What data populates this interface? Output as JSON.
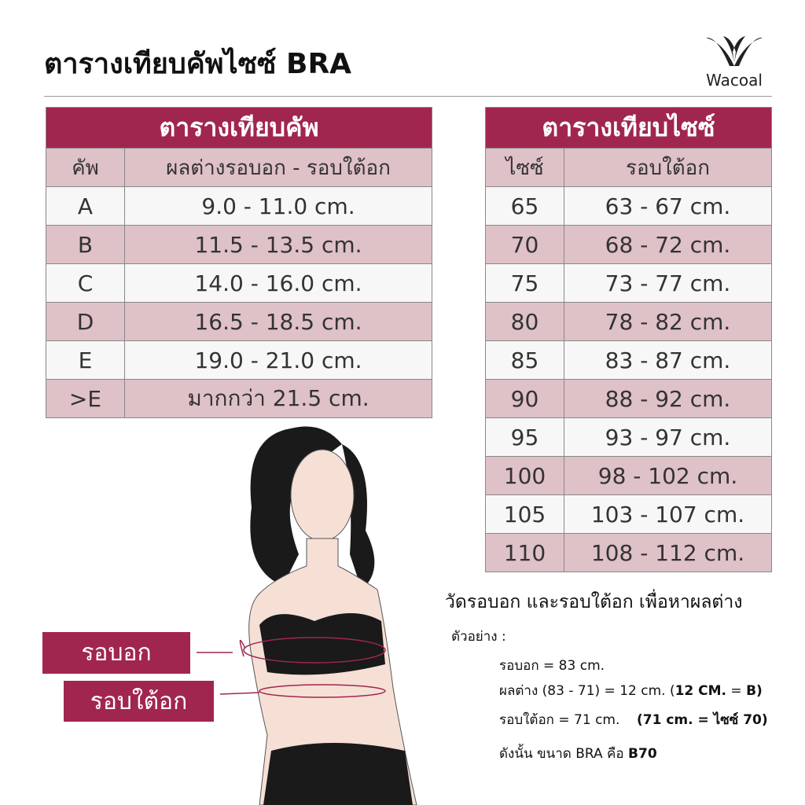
{
  "title": "ตารางเทียบคัพไซซ์ BRA",
  "logo": {
    "text": "Wacoal"
  },
  "cup_table": {
    "title": "ตารางเทียบคัพ",
    "headers": [
      "คัพ",
      "ผลต่างรอบอก - รอบใต้อก"
    ],
    "rows": [
      [
        "A",
        "9.0 - 11.0 cm."
      ],
      [
        "B",
        "11.5 - 13.5 cm."
      ],
      [
        "C",
        "14.0 - 16.0 cm."
      ],
      [
        "D",
        "16.5 - 18.5 cm."
      ],
      [
        "E",
        "19.0 - 21.0 cm."
      ],
      [
        ">E",
        "มากกว่า 21.5 cm."
      ]
    ]
  },
  "size_table": {
    "title": "ตารางเทียบไซซ์",
    "headers": [
      "ไซซ์",
      "รอบใต้อก"
    ],
    "rows": [
      [
        "65",
        "63 - 67 cm."
      ],
      [
        "70",
        "68 - 72 cm."
      ],
      [
        "75",
        "73 - 77 cm."
      ],
      [
        "80",
        "78 - 82 cm."
      ],
      [
        "85",
        "83 - 87 cm."
      ],
      [
        "90",
        "88 - 92 cm."
      ],
      [
        "95",
        "93 - 97 cm."
      ],
      [
        "100",
        "98 - 102 cm."
      ],
      [
        "105",
        "103 - 107 cm."
      ],
      [
        "110",
        "108 - 112 cm."
      ]
    ]
  },
  "labels": {
    "bust": "รอบอก",
    "underbust": "รอบใต้อก"
  },
  "notes": {
    "heading": "วัดรอบอก และรอบใต้อก เพื่อหาผลต่าง",
    "example": "ตัวอย่าง :",
    "line1": "รอบอก = 83 cm.",
    "line2": "ผลต่าง (83 - 71) = 12 cm. (",
    "line2b": "12 CM.",
    "line2c": " = ",
    "line2d": "B)",
    "line3": "รอบใต้อก = 71 cm.",
    "line3b": "(71 cm. = ไซซ์ 70)",
    "line4": "ดังนั้น ขนาด BRA คือ ",
    "line4b": "B70"
  },
  "colors": {
    "accent": "#a1264f",
    "row_pink": "#dfc1c8"
  }
}
